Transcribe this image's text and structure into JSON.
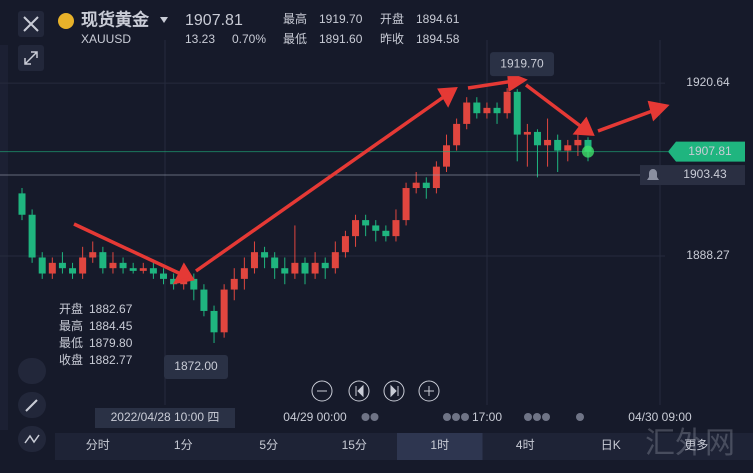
{
  "header": {
    "title": "现货黄金",
    "symbol": "XAUUSD",
    "price": "1907.81",
    "change": "13.23",
    "change_pct": "0.70%",
    "stats": [
      {
        "label": "最高",
        "value": "1919.70"
      },
      {
        "label": "开盘",
        "value": "1894.61"
      },
      {
        "label": "最低",
        "value": "1891.60"
      },
      {
        "label": "昨收",
        "value": "1894.58"
      }
    ]
  },
  "chart_data": {
    "type": "candlestick",
    "open": [
      1900,
      1896,
      1888,
      1885,
      1887,
      1886,
      1885,
      1888,
      1889,
      1886,
      1887,
      1886,
      1885.5,
      1886,
      1885,
      1884,
      1883,
      1884,
      1882,
      1878,
      1874,
      1882,
      1884,
      1886,
      1889,
      1888,
      1886,
      1885,
      1887,
      1885,
      1887,
      1886,
      1889,
      1892,
      1895,
      1894,
      1893,
      1892,
      1895,
      1901,
      1902,
      1901,
      1905,
      1909,
      1913,
      1917,
      1915,
      1916,
      1915,
      1919,
      1911,
      1911.5,
      1909,
      1910,
      1908,
      1909,
      1910
    ],
    "high": [
      1901,
      1897,
      1889,
      1888,
      1889,
      1887,
      1890,
      1891,
      1890,
      1889,
      1888,
      1887,
      1887,
      1887,
      1886,
      1885,
      1885,
      1885,
      1883,
      1879,
      1883,
      1886,
      1888,
      1891,
      1890,
      1889,
      1888,
      1894,
      1888,
      1889,
      1888,
      1891,
      1893,
      1896,
      1896,
      1895,
      1894,
      1897,
      1902,
      1904,
      1903,
      1906,
      1911,
      1914,
      1918,
      1918,
      1917,
      1917,
      1919.7,
      1919.5,
      1913,
      1912,
      1914,
      1911,
      1910,
      1911,
      1910.5
    ],
    "low": [
      1895,
      1887,
      1884,
      1884,
      1885,
      1884,
      1884,
      1887,
      1885,
      1885,
      1885,
      1885,
      1885,
      1884,
      1883,
      1882,
      1882,
      1880,
      1877,
      1872,
      1873,
      1880,
      1882,
      1885,
      1886,
      1884,
      1883,
      1884,
      1883,
      1884,
      1884,
      1885,
      1888,
      1890,
      1892,
      1891,
      1891,
      1891,
      1894,
      1900,
      1899,
      1900,
      1904,
      1908,
      1912,
      1914,
      1914,
      1913,
      1914,
      1906,
      1905,
      1903,
      1905,
      1904,
      1906,
      1907,
      1906
    ],
    "close": [
      1896,
      1888,
      1885,
      1887,
      1886,
      1885,
      1888,
      1889,
      1886,
      1887,
      1886,
      1885.5,
      1886,
      1885,
      1884,
      1883,
      1884,
      1882,
      1878,
      1874,
      1882,
      1884,
      1886,
      1889,
      1888,
      1886,
      1885,
      1887,
      1885,
      1887,
      1886,
      1889,
      1892,
      1895,
      1894,
      1893,
      1892,
      1895,
      1901,
      1902,
      1901,
      1905,
      1909,
      1913,
      1917,
      1915,
      1916,
      1915,
      1919,
      1911,
      1911.5,
      1909,
      1910,
      1908,
      1909,
      1910,
      1907.81
    ],
    "ylim": [
      1860.4,
      1928.7
    ],
    "yticks": [
      1920.64,
      1888.27
    ],
    "up_color": "#e0463f",
    "down_color": "#1fb57f",
    "high_marker": {
      "value": 1919.7,
      "label": "1919.70"
    },
    "low_marker": {
      "value": 1872,
      "label": "1872.00"
    },
    "last_price": {
      "value": 1907.81,
      "label": "1907.81"
    },
    "cursor_price": {
      "value": 1903.43,
      "label": "1903.43"
    }
  },
  "tooltip": [
    {
      "label": "开盘",
      "value": "1882.67"
    },
    {
      "label": "最高",
      "value": "1884.45"
    },
    {
      "label": "最低",
      "value": "1879.80"
    },
    {
      "label": "收盘",
      "value": "1882.77"
    }
  ],
  "time_labels": [
    "2022/04/28 10:00 四",
    "04/29 00:00",
    "17:00",
    "04/30 09:00"
  ],
  "tabs": [
    "分时",
    "1分",
    "5分",
    "15分",
    "1时",
    "4时",
    "日K",
    "更多"
  ],
  "watermark": "汇外网"
}
